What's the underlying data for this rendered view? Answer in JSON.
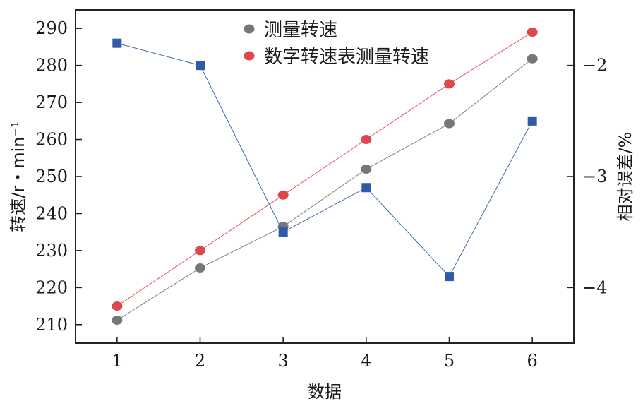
{
  "chart_data": {
    "type": "line",
    "x": [
      1,
      2,
      3,
      4,
      5,
      6
    ],
    "xlabel": "数据",
    "xlim": [
      0.5,
      6.5
    ],
    "ylabel_left": "转速/r・min⁻¹",
    "ylim_left": [
      205,
      295
    ],
    "yticks_left": [
      210,
      220,
      230,
      240,
      250,
      260,
      270,
      280,
      290
    ],
    "ylabel_right": "相对误差/%",
    "ylim_right": [
      -4.5,
      -1.5
    ],
    "yticks_right": [
      -2,
      -3,
      -4
    ],
    "ytick_labels_right": [
      "−2",
      "−3",
      "−4"
    ],
    "grid": false,
    "legend_position": "top-center",
    "series": [
      {
        "name": "测量转速",
        "axis": "left",
        "marker": "circle",
        "color": "#777777",
        "values": [
          211.2,
          225.3,
          236.5,
          252,
          264.3,
          281.8
        ]
      },
      {
        "name": "数字转速表测量转速",
        "axis": "left",
        "marker": "circle",
        "color": "#e0464e",
        "values": [
          215,
          230,
          245,
          260,
          275,
          289
        ]
      },
      {
        "name": "",
        "axis": "right",
        "marker": "square",
        "color": "#2e5aa8",
        "values": [
          -1.8,
          -2.0,
          -3.5,
          -3.1,
          -3.9,
          -2.5
        ]
      }
    ]
  }
}
